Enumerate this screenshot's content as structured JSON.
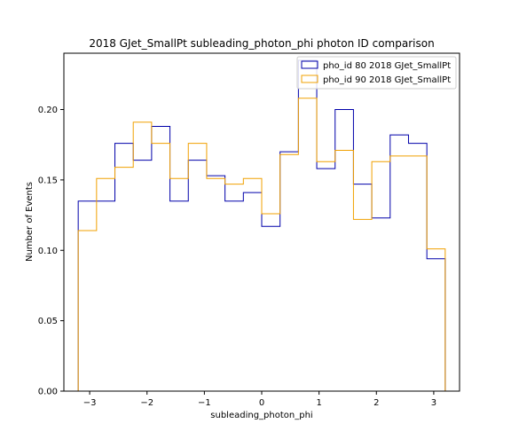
{
  "chart_data": {
    "type": "histogram-step",
    "title": "2018 GJet_SmallPt subleading_photon_phi photon ID comparison",
    "xlabel": "subleading_photon_phi",
    "ylabel": "Number of Events",
    "xlim": [
      -3.45,
      3.45
    ],
    "ylim": [
      0.0,
      0.24
    ],
    "xticks": [
      -3,
      -2,
      -1,
      0,
      1,
      2,
      3
    ],
    "xtick_labels": [
      "−3",
      "−2",
      "−1",
      "0",
      "1",
      "2",
      "3"
    ],
    "yticks": [
      0.0,
      0.05,
      0.1,
      0.15,
      0.2
    ],
    "ytick_labels": [
      "0.00",
      "0.05",
      "0.10",
      "0.15",
      "0.20"
    ],
    "legend_position": "top-right",
    "bin_edges": [
      -3.2,
      -2.88,
      -2.56,
      -2.24,
      -1.92,
      -1.6,
      -1.28,
      -0.96,
      -0.64,
      -0.32,
      0.0,
      0.32,
      0.64,
      0.96,
      1.28,
      1.6,
      1.92,
      2.24,
      2.56,
      2.88,
      3.2
    ],
    "series": [
      {
        "name": "pho_id 80 2018 GJet_SmallPt",
        "color": "#0000aa",
        "values": [
          0.135,
          0.135,
          0.176,
          0.164,
          0.188,
          0.135,
          0.164,
          0.153,
          0.135,
          0.141,
          0.117,
          0.17,
          0.235,
          0.158,
          0.2,
          0.147,
          0.123,
          0.182,
          0.176,
          0.094
        ]
      },
      {
        "name": "pho_id 90 2018 GJet_SmallPt",
        "color": "#f0a000",
        "values": [
          0.114,
          0.151,
          0.159,
          0.191,
          0.176,
          0.151,
          0.176,
          0.151,
          0.147,
          0.151,
          0.126,
          0.168,
          0.208,
          0.163,
          0.171,
          0.122,
          0.163,
          0.167,
          0.167,
          0.101
        ]
      }
    ]
  }
}
